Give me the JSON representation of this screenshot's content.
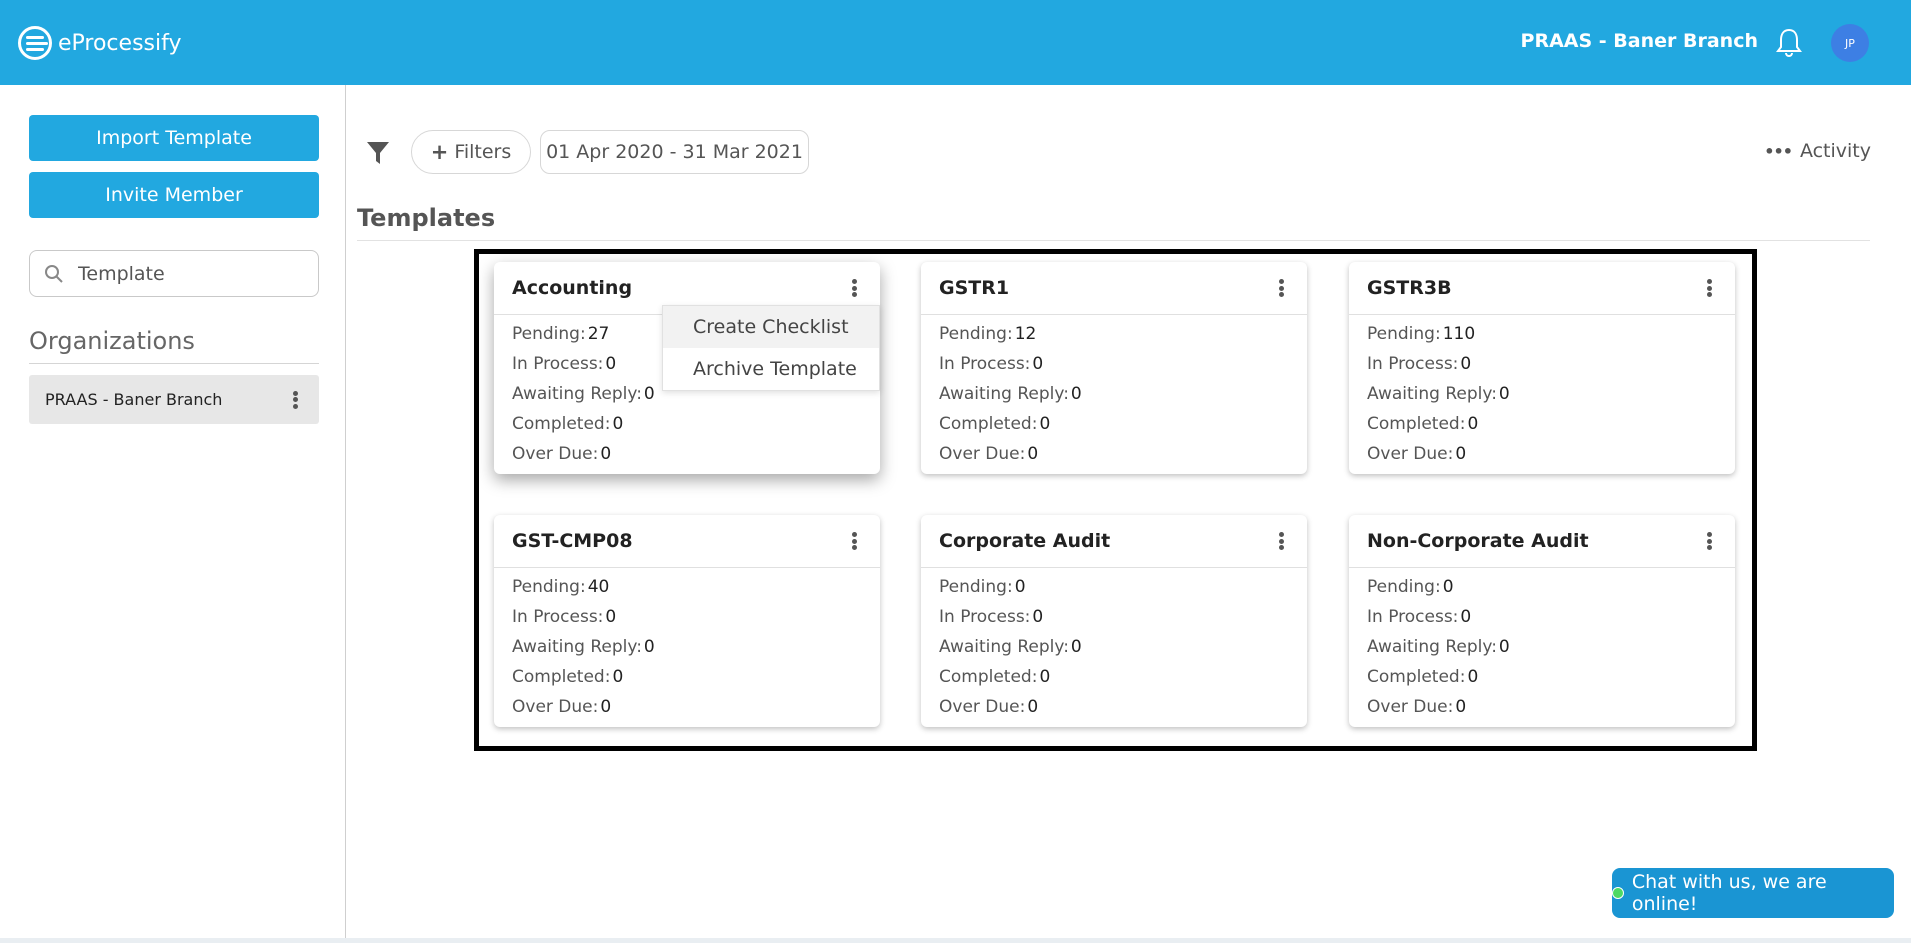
{
  "header": {
    "app_name": "eProcessify",
    "branch": "PRAAS - Baner Branch",
    "avatar_initials": "JP",
    "brand_color": "#22a8e0"
  },
  "sidebar": {
    "import_label": "Import Template",
    "invite_label": "Invite Member",
    "search_value": "Template",
    "org_heading": "Organizations",
    "org_item": "PRAAS - Baner Branch"
  },
  "toolbar": {
    "filters_label": "Filters",
    "date_range": "01 Apr 2020 - 31 Mar 2021",
    "activity_label": "Activity"
  },
  "main": {
    "title": "Templates",
    "cards": [
      {
        "title": "Accounting",
        "pending": "27",
        "in_process": "0",
        "awaiting": "0",
        "completed": "0",
        "overdue": "0"
      },
      {
        "title": "GSTR1",
        "pending": "12",
        "in_process": "0",
        "awaiting": "0",
        "completed": "0",
        "overdue": "0"
      },
      {
        "title": "GSTR3B",
        "pending": "110",
        "in_process": "0",
        "awaiting": "0",
        "completed": "0",
        "overdue": "0"
      },
      {
        "title": "GST-CMP08",
        "pending": "40",
        "in_process": "0",
        "awaiting": "0",
        "completed": "0",
        "overdue": "0"
      },
      {
        "title": "Corporate Audit",
        "pending": "0",
        "in_process": "0",
        "awaiting": "0",
        "completed": "0",
        "overdue": "0"
      },
      {
        "title": "Non-Corporate Audit",
        "pending": "0",
        "in_process": "0",
        "awaiting": "0",
        "completed": "0",
        "overdue": "0"
      }
    ],
    "stat_labels": {
      "pending": "Pending:",
      "in_process": "In Process:",
      "awaiting": "Awaiting Reply:",
      "completed": "Completed:",
      "overdue": "Over Due:"
    },
    "menu": {
      "create": "Create Checklist",
      "archive": "Archive Template"
    }
  },
  "chat": {
    "label": "Chat with us, we are online!"
  }
}
